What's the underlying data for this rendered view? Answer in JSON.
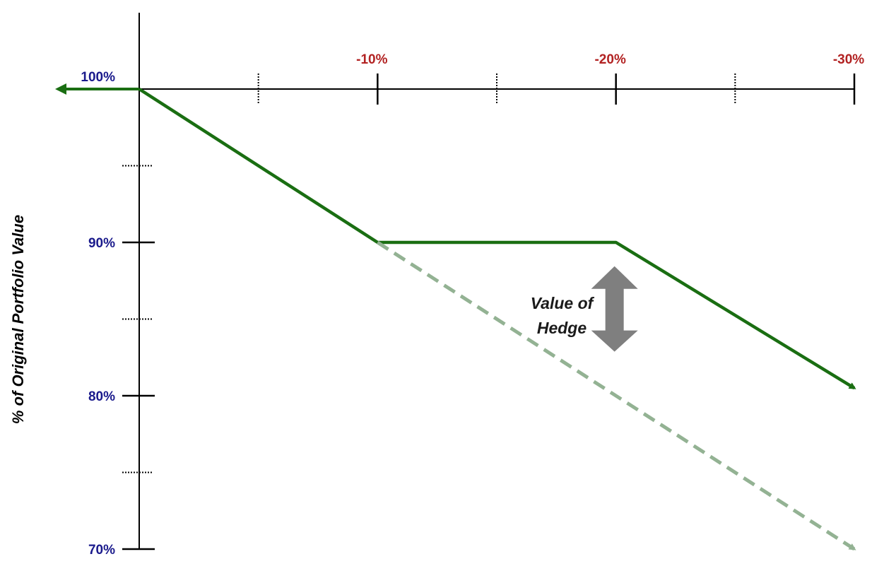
{
  "chart_data": {
    "type": "line",
    "title": "",
    "xlabel": "",
    "ylabel": "% of Original Portfolio Value",
    "x_tick_labels": [
      {
        "value": -10,
        "label": "-10%"
      },
      {
        "value": -20,
        "label": "-20%"
      },
      {
        "value": -30,
        "label": "-30%"
      }
    ],
    "x_minor_ticks": [
      -5,
      -15,
      -25
    ],
    "y_tick_labels": [
      {
        "value": 100,
        "label": "100%"
      },
      {
        "value": 90,
        "label": "90%"
      },
      {
        "value": 80,
        "label": "80%"
      },
      {
        "value": 70,
        "label": "70%"
      }
    ],
    "y_minor_ticks": [
      95,
      85,
      75
    ],
    "xlim": [
      0,
      -30
    ],
    "ylim": [
      70,
      100
    ],
    "grid": false,
    "series": [
      {
        "style": "solid",
        "color": "#1a6e12",
        "points": [
          [
            0,
            100
          ],
          [
            -10,
            90
          ],
          [
            -20,
            90
          ],
          [
            -30,
            80.5
          ]
        ]
      },
      {
        "style": "dashed",
        "color": "#93b293",
        "points": [
          [
            -10,
            90
          ],
          [
            -30,
            70
          ]
        ]
      }
    ],
    "annotations": [
      {
        "text_line1": "Value of",
        "text_line2": "Hedge",
        "arrow": "double-vertical",
        "at_x": -20,
        "from_y": 89,
        "to_y": 82
      }
    ],
    "colors": {
      "axis": "#000000",
      "x_tick_label": "#b22222",
      "y_tick_label": "#1a1a8c",
      "hedge_arrow": "#7f7f7f",
      "annotation_text": "#1a1a1a"
    }
  }
}
